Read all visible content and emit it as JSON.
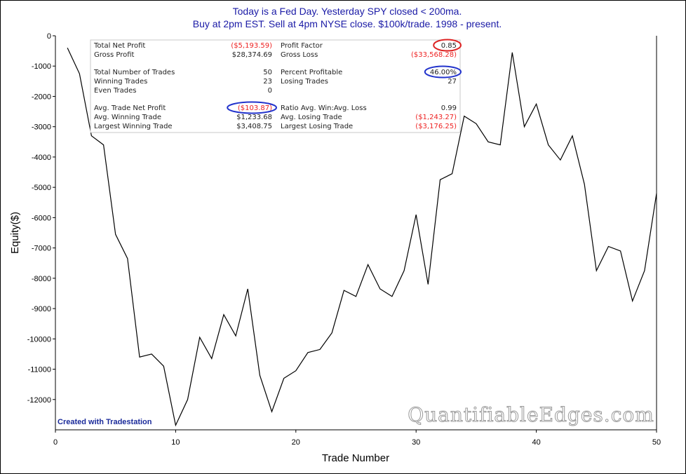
{
  "chart_data": {
    "type": "line",
    "title": [
      "Today is a Fed Day. Yesterday SPY closed < 200ma.",
      "Buy at 2pm EST. Sell at 4pm NYSE close. $100k/trade. 1998 - present."
    ],
    "xlabel": "Trade Number",
    "ylabel": "Equity($)",
    "xlim": [
      0,
      50
    ],
    "ylim": [
      -13000,
      0
    ],
    "x_ticks": [
      0,
      10,
      20,
      30,
      40,
      50
    ],
    "y_ticks": [
      0,
      -1000,
      -2000,
      -3000,
      -4000,
      -5000,
      -6000,
      -7000,
      -8000,
      -9000,
      -10000,
      -11000,
      -12000
    ],
    "grid": false,
    "x": [
      1,
      2,
      3,
      4,
      5,
      6,
      7,
      8,
      9,
      10,
      11,
      12,
      13,
      14,
      15,
      16,
      17,
      18,
      19,
      20,
      21,
      22,
      23,
      24,
      25,
      26,
      27,
      28,
      29,
      30,
      31,
      32,
      33,
      34,
      35,
      36,
      37,
      38,
      39,
      40,
      41,
      42,
      43,
      44,
      45,
      46,
      47,
      48,
      49,
      50
    ],
    "series": [
      {
        "values": [
          -400,
          -1250,
          -3300,
          -3600,
          -6550,
          -7350,
          -10600,
          -10500,
          -10900,
          -12850,
          -12000,
          -9950,
          -10650,
          -9200,
          -9900,
          -8350,
          -11200,
          -12400,
          -11300,
          -11050,
          -10450,
          -10350,
          -9800,
          -8400,
          -8600,
          -7550,
          -8350,
          -8600,
          -7750,
          -5900,
          -8200,
          -4750,
          -4550,
          -2650,
          -2900,
          -3500,
          -3600,
          -550,
          -3000,
          -2250,
          -3600,
          -4100,
          -3300,
          -4900,
          -7750,
          -6950,
          -7100,
          -8750,
          -7750,
          -5200
        ],
        "color": "#000000"
      }
    ],
    "stats": {
      "left": [
        {
          "label": "Total Net Profit",
          "value": "($5,193.59)",
          "negative": true,
          "circled": false
        },
        {
          "label": "Gross Profit",
          "value": "$28,374.69",
          "negative": false,
          "circled": false
        },
        {
          "label": "Total Number of Trades",
          "value": "50",
          "negative": false,
          "circled": false
        },
        {
          "label": "Winning Trades",
          "value": "23",
          "negative": false,
          "circled": false
        },
        {
          "label": "Even Trades",
          "value": "0",
          "negative": false,
          "circled": false
        },
        {
          "label": "Avg. Trade Net Profit",
          "value": "($103.87)",
          "negative": true,
          "circled": true,
          "circle_color": "#2233cc"
        },
        {
          "label": "Avg. Winning Trade",
          "value": "$1,233.68",
          "negative": false,
          "circled": false
        },
        {
          "label": "Largest Winning Trade",
          "value": "$3,408.75",
          "negative": false,
          "circled": false
        }
      ],
      "right": [
        {
          "label": "Profit Factor",
          "value": "0.85",
          "negative": false,
          "circled": true,
          "circle_color": "#dd2222"
        },
        {
          "label": "Gross Loss",
          "value": "($33,568.28)",
          "negative": true,
          "circled": false
        },
        {
          "label": "Percent Profitable",
          "value": "46.00%",
          "negative": false,
          "circled": true,
          "circle_color": "#2233cc"
        },
        {
          "label": "Losing Trades",
          "value": "27",
          "negative": false,
          "circled": false
        },
        {
          "label": "Ratio Avg. Win:Avg. Loss",
          "value": "0.99",
          "negative": false,
          "circled": false
        },
        {
          "label": "Avg. Losing Trade",
          "value": "($1,243.27)",
          "negative": true,
          "circled": false
        },
        {
          "label": "Largest Losing Trade",
          "value": "($3,176.25)",
          "negative": true,
          "circled": false
        }
      ]
    },
    "credit": "Created with Tradestation",
    "watermark": "QuantifiableEdges.com",
    "colors": {
      "title": "#1a1aa6",
      "negative": "#ee2222",
      "credit": "#1a2a9a"
    }
  }
}
